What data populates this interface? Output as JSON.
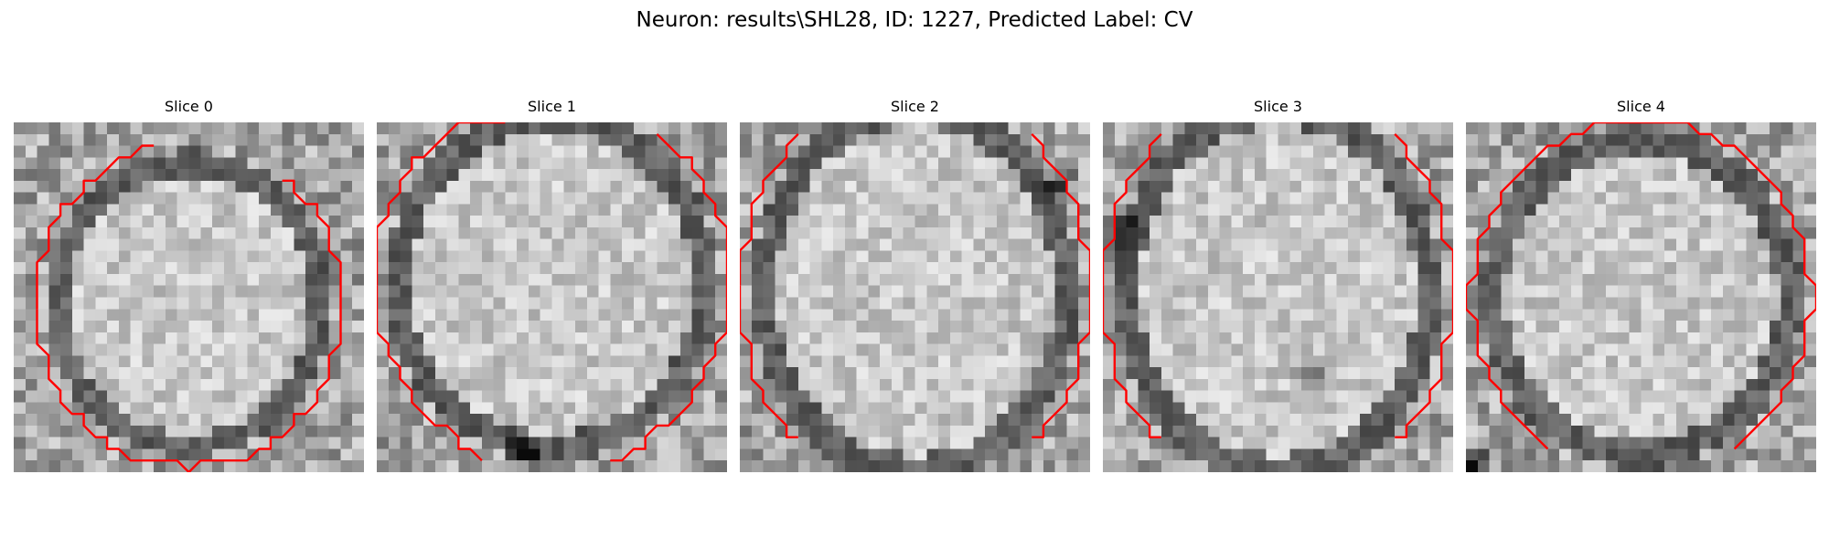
{
  "figure": {
    "title": "Neuron: results\\SHL28, ID: 1227, Predicted Label: CV"
  },
  "colors": {
    "contour": "#ff0000",
    "background": "#ffffff"
  },
  "panels": [
    {
      "title": "Slice 0",
      "seed": 11,
      "contour": {
        "type": "ring",
        "center": [
          0.5,
          0.52
        ],
        "radius": [
          0.4,
          0.43
        ],
        "gaps": [
          [
            -100,
            -55
          ]
        ],
        "ring_offset": 0.035
      },
      "dark_spots": []
    },
    {
      "title": "Slice 1",
      "seed": 23,
      "contour": {
        "type": "ring",
        "center": [
          0.5,
          0.46
        ],
        "radius": [
          0.47,
          0.5
        ],
        "gaps": [
          [
            -100,
            -55
          ],
          [
            75,
            108
          ]
        ],
        "ring_offset": 0.035
      },
      "dark_spots": [
        [
          0.42,
          0.95
        ]
      ]
    },
    {
      "title": "Slice 2",
      "seed": 37,
      "contour": {
        "type": "sides",
        "center": [
          0.5,
          0.48
        ],
        "radius": [
          0.46,
          0.55
        ],
        "gaps": [],
        "ring_offset": 0.035
      },
      "dark_spots": [
        [
          0.9,
          0.18
        ]
      ]
    },
    {
      "title": "Slice 3",
      "seed": 51,
      "contour": {
        "type": "sides",
        "center": [
          0.5,
          0.48
        ],
        "radius": [
          0.46,
          0.55
        ],
        "gaps": [],
        "ring_offset": 0.035
      },
      "dark_spots": [
        [
          0.6,
          0.73
        ],
        [
          0.06,
          0.3
        ]
      ]
    },
    {
      "title": "Slice 4",
      "seed": 67,
      "contour": {
        "type": "ring",
        "center": [
          0.5,
          0.5
        ],
        "radius": [
          0.45,
          0.48
        ],
        "gaps": [
          [
            60,
            120
          ]
        ],
        "ring_offset": 0.035
      },
      "dark_spots": [
        [
          0.02,
          0.98
        ]
      ]
    }
  ]
}
